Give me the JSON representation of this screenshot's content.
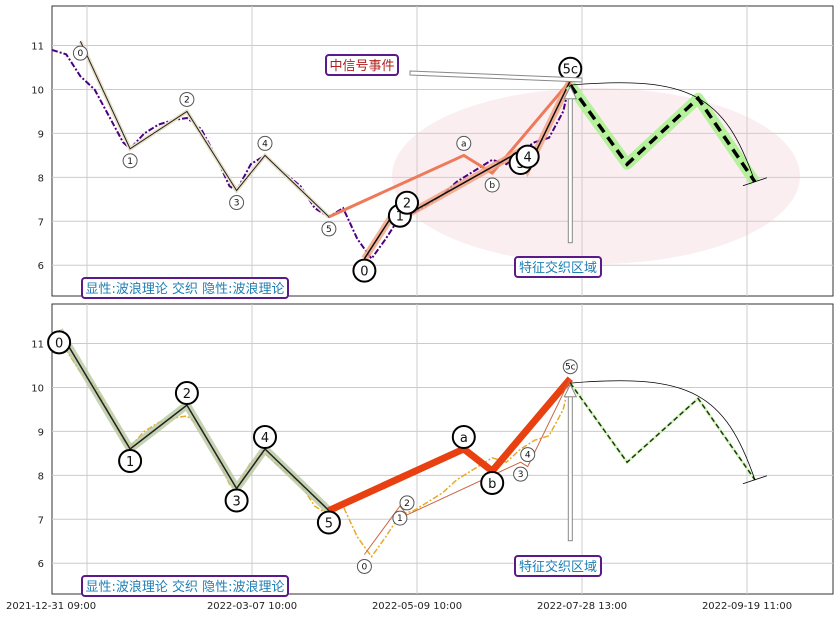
{
  "chart_data": [
    {
      "type": "line",
      "panel": "top",
      "ylim": [
        5.3,
        11.9
      ],
      "yticks": [
        6,
        7,
        8,
        9,
        10,
        11
      ],
      "x_tick_labels": [
        "2021-12-31 09:00",
        "2022-03-07 10:00",
        "2022-05-09 10:00",
        "2022-07-28 13:00",
        "2022-09-19 11:00"
      ],
      "grid": true,
      "annotations": {
        "signal_box": "中信号事件",
        "zone_box": "特征交织区域",
        "info_box": "显性:波浪理论 交织 隐性:波浪理论"
      },
      "price_series": [
        [
          0,
          10.9
        ],
        [
          2,
          10.8
        ],
        [
          4,
          10.3
        ],
        [
          6,
          10.0
        ],
        [
          8,
          9.4
        ],
        [
          10,
          8.8
        ],
        [
          11,
          8.65
        ],
        [
          13,
          9.0
        ],
        [
          15,
          9.2
        ],
        [
          17,
          9.3
        ],
        [
          19,
          9.35
        ],
        [
          21,
          9.1
        ],
        [
          23,
          8.5
        ],
        [
          25,
          7.8
        ],
        [
          26,
          7.7
        ],
        [
          28,
          8.3
        ],
        [
          30,
          8.5
        ],
        [
          32,
          8.2
        ],
        [
          35,
          7.8
        ],
        [
          37,
          7.3
        ],
        [
          39,
          7.1
        ],
        [
          41,
          7.3
        ],
        [
          43,
          6.6
        ],
        [
          45,
          6.15
        ],
        [
          47,
          6.6
        ],
        [
          49,
          7.1
        ],
        [
          51,
          7.2
        ],
        [
          53,
          7.4
        ],
        [
          55,
          7.6
        ],
        [
          57,
          7.9
        ],
        [
          60,
          8.2
        ],
        [
          62,
          8.4
        ],
        [
          64,
          8.3
        ],
        [
          66,
          8.6
        ],
        [
          68,
          8.8
        ],
        [
          70,
          8.9
        ],
        [
          72,
          9.5
        ],
        [
          73,
          10.2
        ]
      ],
      "price_color": "#4b0082",
      "waves_small": [
        {
          "label": "0",
          "x": 4,
          "y": 11.1
        },
        {
          "label": "1",
          "x": 11,
          "y": 8.65
        },
        {
          "label": "2",
          "x": 19,
          "y": 9.5
        },
        {
          "label": "3",
          "x": 26,
          "y": 7.7
        },
        {
          "label": "4",
          "x": 30,
          "y": 8.5
        },
        {
          "label": "5",
          "x": 39,
          "y": 7.1
        },
        {
          "label": "a",
          "x": 58,
          "y": 8.5
        },
        {
          "label": "b",
          "x": 62,
          "y": 8.1
        }
      ],
      "waves_large": [
        {
          "label": "0",
          "x": 44,
          "y": 6.15
        },
        {
          "label": "1",
          "x": 49,
          "y": 7.4
        },
        {
          "label": "2",
          "x": 50,
          "y": 7.15
        },
        {
          "label": "3",
          "x": 66,
          "y": 8.6
        },
        {
          "label": "4",
          "x": 67,
          "y": 8.2
        },
        {
          "label": "5c",
          "x": 73,
          "y": 10.2
        }
      ],
      "projection": [
        [
          73,
          10.1
        ],
        [
          81,
          8.3
        ],
        [
          91,
          9.8
        ],
        [
          99,
          7.9
        ]
      ]
    },
    {
      "type": "line",
      "panel": "bottom",
      "ylim": [
        5.3,
        11.9
      ],
      "yticks": [
        6,
        7,
        8,
        9,
        10,
        11
      ],
      "x_tick_labels": [
        "2021-12-31 09:00",
        "2022-03-07 10:00",
        "2022-05-09 10:00",
        "2022-07-28 13:00",
        "2022-09-19 11:00"
      ],
      "grid": true,
      "annotations": {
        "zone_box": "特征交织区域",
        "info_box": "显性:波浪理论 交织 隐性:波浪理论"
      },
      "price_color": "#e8a92c",
      "waves_large": [
        {
          "label": "0",
          "x": 1,
          "y": 11.3
        },
        {
          "label": "1",
          "x": 11,
          "y": 8.6
        },
        {
          "label": "2",
          "x": 19,
          "y": 9.6
        },
        {
          "label": "3",
          "x": 26,
          "y": 7.7
        },
        {
          "label": "4",
          "x": 30,
          "y": 8.6
        },
        {
          "label": "5",
          "x": 39,
          "y": 7.2
        },
        {
          "label": "a",
          "x": 58,
          "y": 8.6
        },
        {
          "label": "b",
          "x": 62,
          "y": 8.1
        }
      ],
      "waves_small": [
        {
          "label": "0",
          "x": 44,
          "y": 6.2
        },
        {
          "label": "1",
          "x": 49,
          "y": 7.3
        },
        {
          "label": "2",
          "x": 50,
          "y": 7.1
        },
        {
          "label": "3",
          "x": 66,
          "y": 8.3
        },
        {
          "label": "4",
          "x": 67,
          "y": 8.2
        },
        {
          "label": "5c",
          "x": 73,
          "y": 10.2
        }
      ],
      "projection": [
        [
          73,
          10.1
        ],
        [
          81,
          8.3
        ],
        [
          91,
          9.75
        ],
        [
          99,
          7.9
        ]
      ]
    }
  ]
}
